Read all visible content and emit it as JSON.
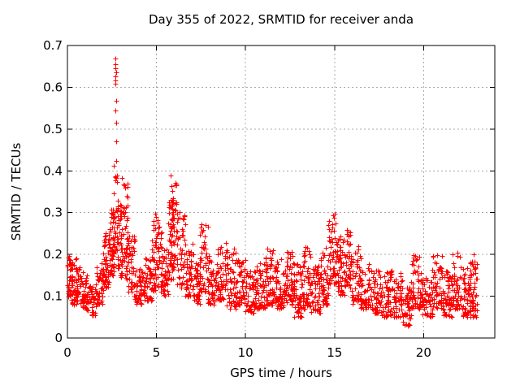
{
  "chart_data": {
    "type": "scatter",
    "title": "Day 355 of 2022, SRMTID for receiver anda",
    "xlabel": "GPS time / hours",
    "ylabel": "SRMTID / TECUs",
    "xlim": [
      0,
      24
    ],
    "ylim": [
      0,
      0.7
    ],
    "xticks": [
      0,
      5,
      10,
      15,
      20
    ],
    "yticks": [
      0,
      0.1,
      0.2,
      0.3,
      0.4,
      0.5,
      0.6,
      0.7
    ],
    "grid": true,
    "legend": "none",
    "marker": "plus-icon",
    "marker_color": "#ff0000",
    "grid_color": "#a8a8a8",
    "axis_color": "#000000",
    "background_color": "#ffffff",
    "data_x_extent": [
      0.0,
      23.0
    ],
    "peak_points": [
      [
        2.7,
        0.669
      ],
      [
        2.71,
        0.656
      ],
      [
        2.7,
        0.646
      ],
      [
        2.72,
        0.635
      ],
      [
        2.7,
        0.627
      ],
      [
        2.71,
        0.617
      ],
      [
        2.7,
        0.608
      ],
      [
        2.73,
        0.567
      ],
      [
        2.71,
        0.544
      ],
      [
        2.72,
        0.515
      ],
      [
        2.74,
        0.471
      ],
      [
        2.72,
        0.423
      ],
      [
        3.05,
        0.384
      ],
      [
        5.8,
        0.388
      ],
      [
        5.84,
        0.363
      ],
      [
        6.05,
        0.372
      ],
      [
        15.0,
        0.298
      ],
      [
        14.96,
        0.288
      ],
      [
        7.55,
        0.272
      ],
      [
        4.95,
        0.298
      ]
    ],
    "density_bands": [
      [
        0.0,
        0.3,
        0.1,
        0.2,
        40
      ],
      [
        0.2,
        0.7,
        0.08,
        0.19,
        55
      ],
      [
        0.7,
        1.1,
        0.07,
        0.16,
        45
      ],
      [
        1.1,
        1.6,
        0.055,
        0.125,
        45
      ],
      [
        1.6,
        2.0,
        0.08,
        0.18,
        45
      ],
      [
        2.0,
        2.35,
        0.12,
        0.26,
        55
      ],
      [
        2.35,
        2.62,
        0.15,
        0.31,
        55
      ],
      [
        2.6,
        2.8,
        0.2,
        0.42,
        28
      ],
      [
        2.8,
        3.05,
        0.15,
        0.33,
        40
      ],
      [
        3.0,
        3.4,
        0.14,
        0.385,
        55
      ],
      [
        3.4,
        3.8,
        0.1,
        0.25,
        45
      ],
      [
        3.8,
        4.3,
        0.08,
        0.165,
        50
      ],
      [
        4.3,
        4.75,
        0.09,
        0.2,
        45
      ],
      [
        4.75,
        5.3,
        0.11,
        0.3,
        70
      ],
      [
        5.3,
        5.65,
        0.1,
        0.22,
        40
      ],
      [
        5.65,
        5.95,
        0.14,
        0.34,
        45
      ],
      [
        5.75,
        6.15,
        0.17,
        0.375,
        50
      ],
      [
        6.15,
        6.6,
        0.12,
        0.31,
        45
      ],
      [
        6.6,
        7.1,
        0.1,
        0.23,
        50
      ],
      [
        7.1,
        7.45,
        0.08,
        0.18,
        40
      ],
      [
        7.4,
        7.9,
        0.11,
        0.27,
        50
      ],
      [
        7.9,
        8.4,
        0.08,
        0.2,
        50
      ],
      [
        8.4,
        8.9,
        0.09,
        0.23,
        50
      ],
      [
        8.9,
        9.5,
        0.07,
        0.22,
        55
      ],
      [
        9.5,
        10.0,
        0.08,
        0.19,
        50
      ],
      [
        10.0,
        10.6,
        0.06,
        0.16,
        55
      ],
      [
        10.6,
        11.1,
        0.07,
        0.18,
        55
      ],
      [
        11.1,
        11.7,
        0.08,
        0.22,
        60
      ],
      [
        11.7,
        12.2,
        0.07,
        0.19,
        55
      ],
      [
        12.2,
        12.7,
        0.08,
        0.22,
        55
      ],
      [
        12.7,
        13.2,
        0.05,
        0.18,
        55
      ],
      [
        13.2,
        13.7,
        0.07,
        0.23,
        55
      ],
      [
        13.7,
        14.2,
        0.06,
        0.18,
        55
      ],
      [
        14.2,
        14.65,
        0.08,
        0.22,
        50
      ],
      [
        14.65,
        15.15,
        0.13,
        0.295,
        60
      ],
      [
        15.15,
        15.55,
        0.1,
        0.25,
        45
      ],
      [
        15.55,
        15.95,
        0.12,
        0.27,
        45
      ],
      [
        15.95,
        16.45,
        0.08,
        0.22,
        50
      ],
      [
        16.45,
        17.0,
        0.07,
        0.19,
        55
      ],
      [
        17.0,
        17.6,
        0.06,
        0.17,
        55
      ],
      [
        17.6,
        18.2,
        0.05,
        0.16,
        55
      ],
      [
        18.2,
        18.8,
        0.05,
        0.17,
        55
      ],
      [
        18.8,
        19.3,
        0.03,
        0.13,
        50
      ],
      [
        19.3,
        19.9,
        0.07,
        0.2,
        55
      ],
      [
        19.9,
        20.5,
        0.05,
        0.15,
        55
      ],
      [
        20.5,
        21.1,
        0.07,
        0.2,
        55
      ],
      [
        21.1,
        21.6,
        0.05,
        0.16,
        50
      ],
      [
        21.6,
        22.1,
        0.07,
        0.21,
        50
      ],
      [
        22.1,
        22.6,
        0.05,
        0.17,
        50
      ],
      [
        22.6,
        23.0,
        0.05,
        0.2,
        55
      ]
    ],
    "seed": 1355
  }
}
